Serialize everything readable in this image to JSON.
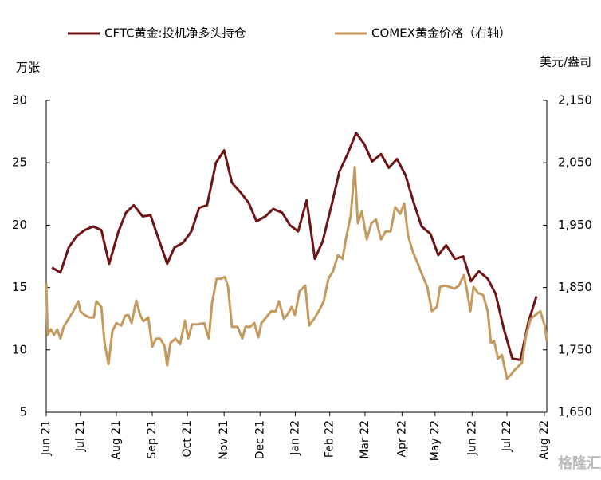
{
  "chart_data": {
    "type": "line",
    "legend": "top",
    "y_unit": "万张",
    "y2_unit": "美元/盎司",
    "watermark": "格隆汇",
    "xlim": [
      0,
      14.07
    ],
    "xticks": [
      {
        "value": 0,
        "label": "Jun 21"
      },
      {
        "value": 0.96,
        "label": "Jul 21"
      },
      {
        "value": 1.97,
        "label": "Aug 21"
      },
      {
        "value": 2.98,
        "label": "Sep 21"
      },
      {
        "value": 3.97,
        "label": "Oct 21"
      },
      {
        "value": 5.0,
        "label": "Nov 21"
      },
      {
        "value": 6.01,
        "label": "Dec 21"
      },
      {
        "value": 7.0,
        "label": "Jan 22"
      },
      {
        "value": 7.97,
        "label": "Feb 22"
      },
      {
        "value": 8.96,
        "label": "Mar 22"
      },
      {
        "value": 10.0,
        "label": "Apr 22"
      },
      {
        "value": 10.93,
        "label": "May 22"
      },
      {
        "value": 11.97,
        "label": "Jun 22"
      },
      {
        "value": 12.95,
        "label": "Jul 22"
      },
      {
        "value": 14.0,
        "label": "Aug 22"
      }
    ],
    "ylim": [
      5,
      30
    ],
    "yticks": [
      5,
      10,
      15,
      20,
      25,
      30
    ],
    "y2lim": [
      1650,
      2150
    ],
    "y2ticks": [
      {
        "value": 1650,
        "label": "1,650"
      },
      {
        "value": 1750,
        "label": "1,750"
      },
      {
        "value": 1850,
        "label": "1,850"
      },
      {
        "value": 1950,
        "label": "1,950"
      },
      {
        "value": 2050,
        "label": "2,050"
      },
      {
        "value": 2150,
        "label": "2,150"
      }
    ],
    "series": [
      {
        "name": "CFTC黄金:投机净多头持仓",
        "color": "#6e1414",
        "x": [
          0.16,
          0.4,
          0.63,
          0.85,
          1.08,
          1.32,
          1.55,
          1.77,
          2.02,
          2.24,
          2.46,
          2.71,
          2.93,
          3.4,
          3.6,
          3.85,
          4.08,
          4.3,
          4.52,
          4.77,
          5.0,
          5.22,
          5.47,
          5.69,
          5.91,
          6.16,
          6.38,
          6.63,
          6.85,
          7.08,
          7.32,
          7.55,
          7.77,
          8.02,
          8.24,
          8.47,
          8.71,
          8.94,
          9.16,
          9.41,
          9.63,
          9.86,
          10.1,
          10.33,
          10.55,
          10.8,
          11.02,
          11.24,
          11.49,
          11.72,
          11.94,
          12.16,
          12.41,
          12.63,
          12.86,
          13.1,
          13.33,
          13.55,
          13.78
        ],
        "values": [
          16.6,
          16.2,
          18.2,
          19.1,
          19.6,
          19.9,
          19.6,
          16.9,
          19.4,
          21.0,
          21.6,
          20.7,
          20.8,
          16.9,
          18.2,
          18.6,
          19.5,
          21.4,
          21.6,
          25.0,
          26.0,
          23.4,
          22.6,
          21.8,
          20.3,
          20.7,
          21.3,
          21.0,
          20.0,
          19.5,
          22.0,
          17.3,
          18.7,
          21.6,
          24.3,
          25.7,
          27.4,
          26.5,
          25.1,
          25.7,
          24.6,
          25.3,
          24.0,
          21.8,
          19.9,
          19.3,
          17.6,
          18.4,
          17.3,
          17.5,
          15.5,
          16.3,
          15.7,
          14.5,
          11.7,
          9.3,
          9.2,
          12.2,
          14.3
        ]
      },
      {
        "name": "COMEX黄金价格（右轴）",
        "color": "#c49a5e",
        "axis": "y2",
        "x": [
          0,
          0.04,
          0.13,
          0.22,
          0.31,
          0.4,
          0.49,
          0.63,
          0.76,
          0.9,
          0.96,
          1.08,
          1.21,
          1.34,
          1.41,
          1.55,
          1.64,
          1.75,
          1.86,
          1.97,
          2.11,
          2.22,
          2.31,
          2.4,
          2.53,
          2.64,
          2.73,
          2.87,
          2.98,
          3.09,
          3.2,
          3.32,
          3.4,
          3.49,
          3.63,
          3.76,
          3.9,
          3.99,
          4.1,
          4.26,
          4.44,
          4.57,
          4.66,
          4.79,
          4.91,
          5.02,
          5.11,
          5.22,
          5.38,
          5.51,
          5.6,
          5.73,
          5.85,
          5.96,
          6.05,
          6.18,
          6.32,
          6.45,
          6.54,
          6.68,
          6.77,
          6.9,
          6.99,
          7.12,
          7.28,
          7.39,
          7.53,
          7.66,
          7.8,
          7.93,
          8.06,
          8.2,
          8.33,
          8.42,
          8.56,
          8.67,
          8.76,
          8.87,
          9.01,
          9.14,
          9.27,
          9.41,
          9.54,
          9.68,
          9.81,
          9.95,
          10.06,
          10.17,
          10.3,
          10.44,
          10.57,
          10.71,
          10.84,
          10.98,
          11.07,
          11.2,
          11.34,
          11.47,
          11.6,
          11.74,
          11.83,
          11.92,
          12.01,
          12.14,
          12.28,
          12.41,
          12.5,
          12.59,
          12.7,
          12.81,
          12.95,
          13.06,
          13.15,
          13.26,
          13.37,
          13.49,
          13.62,
          13.75,
          13.89,
          14.02,
          14.07
        ],
        "values": [
          1857,
          1774,
          1783,
          1774,
          1783,
          1768,
          1787,
          1800,
          1812,
          1828,
          1812,
          1806,
          1802,
          1802,
          1828,
          1819,
          1761,
          1727,
          1780,
          1793,
          1789,
          1805,
          1806,
          1793,
          1829,
          1806,
          1796,
          1802,
          1755,
          1768,
          1768,
          1757,
          1725,
          1761,
          1768,
          1759,
          1797,
          1768,
          1791,
          1791,
          1793,
          1768,
          1825,
          1864,
          1864,
          1867,
          1851,
          1787,
          1787,
          1768,
          1787,
          1787,
          1793,
          1770,
          1793,
          1802,
          1812,
          1812,
          1828,
          1800,
          1806,
          1819,
          1806,
          1844,
          1853,
          1789,
          1800,
          1812,
          1828,
          1864,
          1876,
          1902,
          1896,
          1927,
          1966,
          2043,
          1953,
          1972,
          1927,
          1953,
          1959,
          1927,
          1940,
          1940,
          1979,
          1968,
          1985,
          1934,
          1908,
          1889,
          1870,
          1851,
          1812,
          1819,
          1851,
          1853,
          1851,
          1848,
          1853,
          1870,
          1844,
          1812,
          1851,
          1841,
          1838,
          1812,
          1761,
          1764,
          1736,
          1742,
          1704,
          1710,
          1717,
          1723,
          1729,
          1774,
          1800,
          1806,
          1812,
          1787,
          1764
        ]
      }
    ]
  }
}
